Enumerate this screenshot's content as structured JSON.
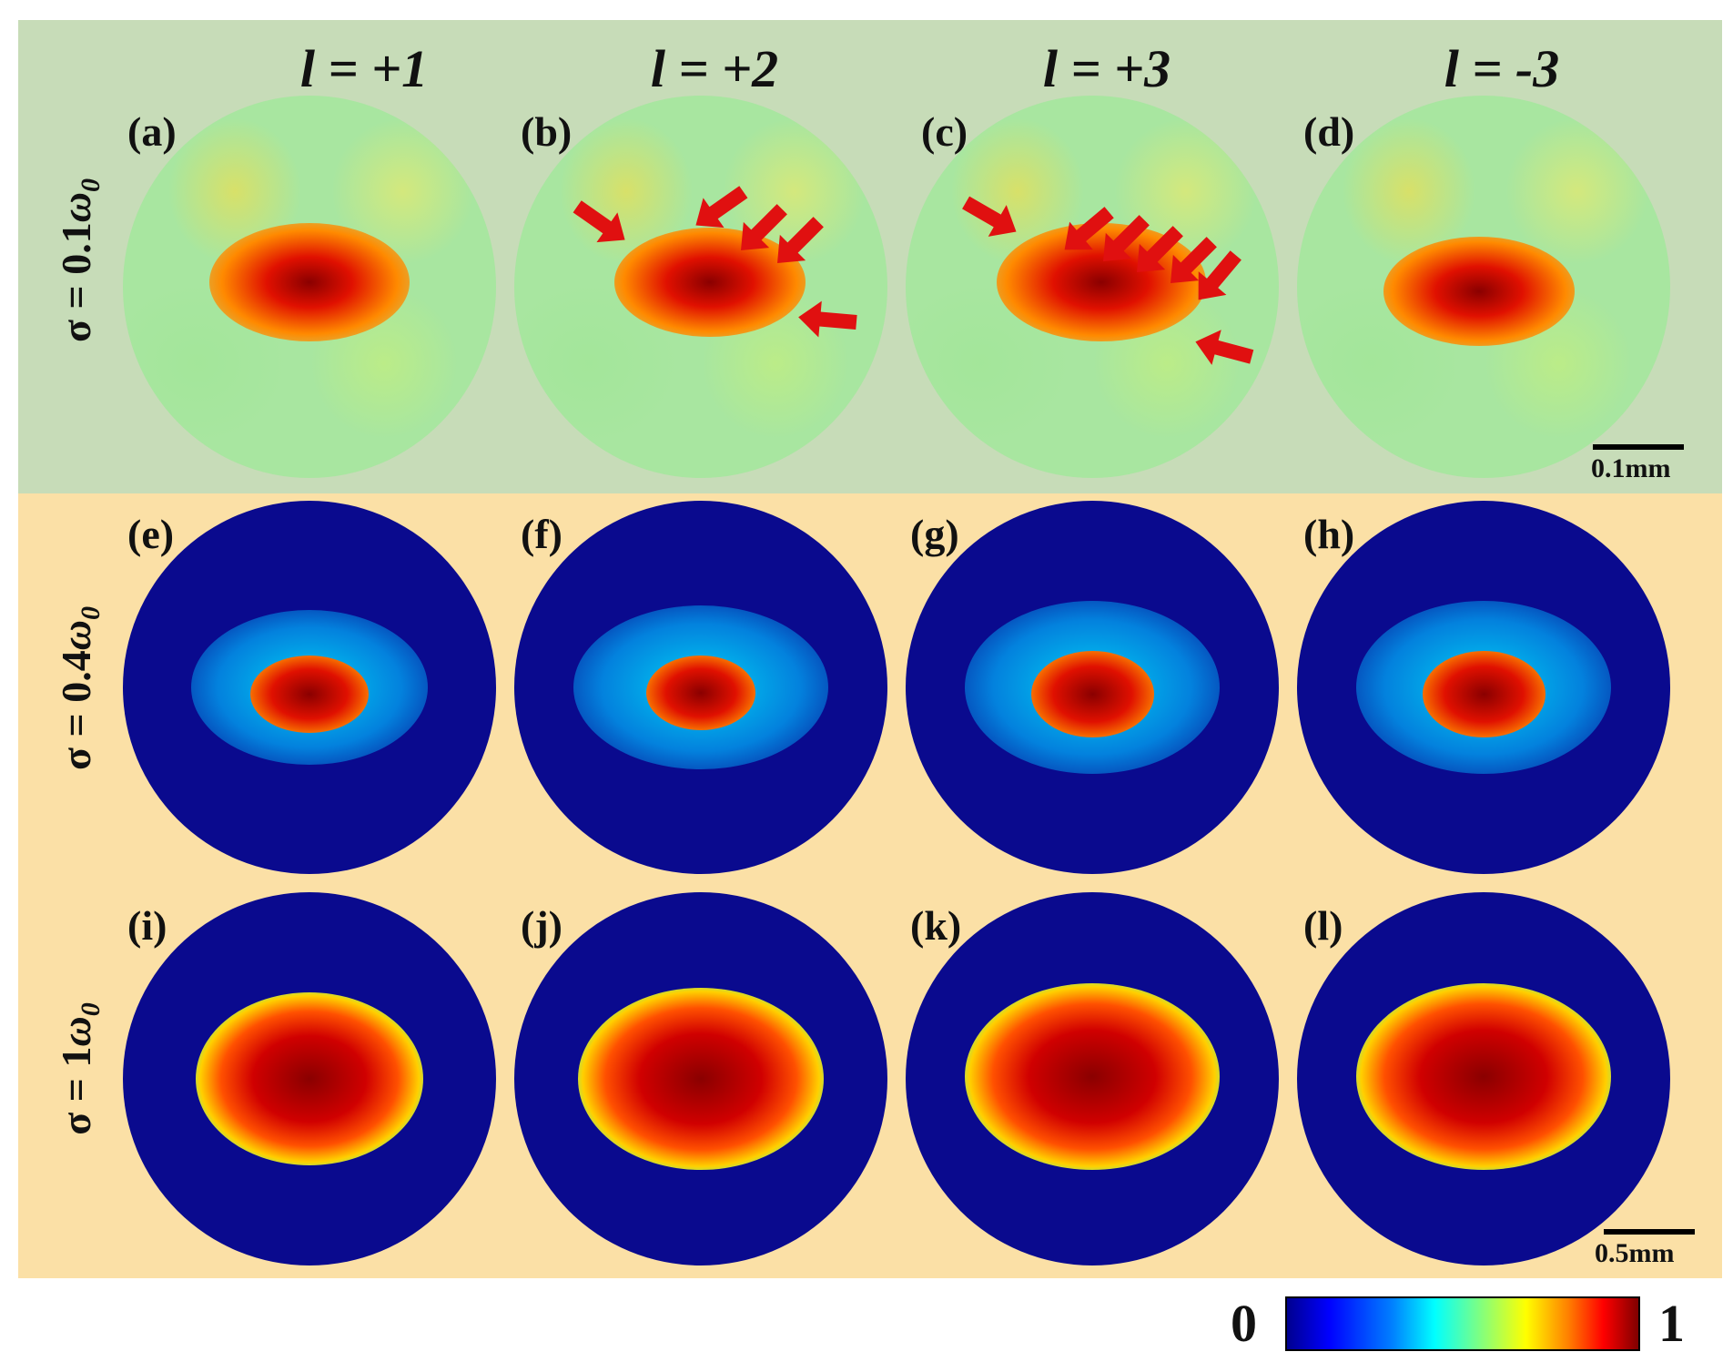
{
  "figure": {
    "columns": [
      "l = +1",
      "l = +2",
      "l = +3",
      "l = -3"
    ],
    "rows": [
      {
        "prefix": "σ = 0.1",
        "omega": "ω",
        "sub": "0"
      },
      {
        "prefix": "σ = 0.4",
        "omega": "ω",
        "sub": "0"
      },
      {
        "prefix": "σ = 1",
        "omega": "ω",
        "sub": "0"
      }
    ],
    "panel_labels": [
      "(a)",
      "(b)",
      "(c)",
      "(d)",
      "(e)",
      "(f)",
      "(g)",
      "(h)",
      "(i)",
      "(j)",
      "(k)",
      "(l)"
    ],
    "scalebars": [
      "0.1mm",
      "0.5mm"
    ],
    "colorbar": {
      "min": "0",
      "max": "1",
      "colormap": "jet"
    }
  }
}
